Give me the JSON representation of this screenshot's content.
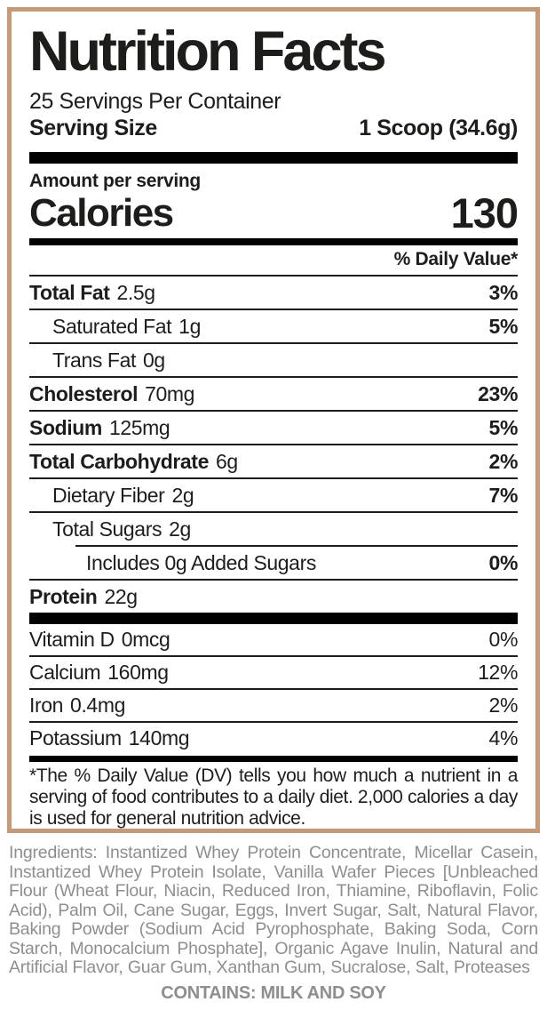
{
  "nutrition_label": {
    "title": "Nutrition Facts",
    "servings_per_container": "25 Servings Per Container",
    "serving_size": {
      "label": "Serving Size",
      "value": "1 Scoop (34.6g)"
    },
    "amount_per_serving_label": "Amount per serving",
    "calories": {
      "label": "Calories",
      "value": "130"
    },
    "daily_value_header": "% Daily Value*",
    "nutrients": [
      {
        "name": "Total Fat",
        "amount": "2.5g",
        "dv": "3%"
      },
      {
        "name": "Saturated Fat",
        "amount": "1g",
        "dv": "5%"
      },
      {
        "name": "Trans Fat",
        "amount": "0g",
        "dv": ""
      },
      {
        "name": "Cholesterol",
        "amount": "70mg",
        "dv": "23%"
      },
      {
        "name": "Sodium",
        "amount": "125mg",
        "dv": "5%"
      },
      {
        "name": "Total Carbohydrate",
        "amount": "6g",
        "dv": "2%"
      },
      {
        "name": "Dietary Fiber",
        "amount": "2g",
        "dv": "7%"
      },
      {
        "name": "Total Sugars",
        "amount": "2g",
        "dv": ""
      },
      {
        "name": "Includes 0g Added Sugars",
        "amount": "",
        "dv": "0%"
      },
      {
        "name": "Protein",
        "amount": "22g",
        "dv": ""
      }
    ],
    "micronutrients": [
      {
        "name": "Vitamin D",
        "amount": "0mcg",
        "dv": "0%"
      },
      {
        "name": "Calcium",
        "amount": "160mg",
        "dv": "12%"
      },
      {
        "name": "Iron",
        "amount": "0.4mg",
        "dv": "2%"
      },
      {
        "name": "Potassium",
        "amount": "140mg",
        "dv": "4%"
      }
    ],
    "footnote": "*The % Daily Value (DV) tells you how much a nutrient in a serving of food contributes to a daily diet. 2,000 calories a day is used for general nutrition advice."
  },
  "ingredients_section": {
    "text": "Ingredients: Instantized Whey Protein Concentrate, Micellar Casein, Instantized Whey Protein Isolate, Vanilla Wafer Pieces [Unbleached Flour (Wheat Flour, Niacin, Reduced Iron, Thiamine, Riboflavin, Folic Acid), Palm Oil, Cane Sugar, Eggs, Invert Sugar, Salt, Natural Flavor, Baking Powder (Sodium Acid Pyrophosphate, Baking Soda, Corn Starch, Monocalcium Phosphate], Organic Agave Inulin, Natural and Artificial Flavor, Guar Gum, Xanthan Gum, Sucralose, Salt, Proteases",
    "contains": "CONTAINS: MILK AND SOY"
  },
  "colors": {
    "border": "#c49a7b",
    "label_text": "#1d1d1b",
    "ingredients_text": "#8e8e8e"
  }
}
